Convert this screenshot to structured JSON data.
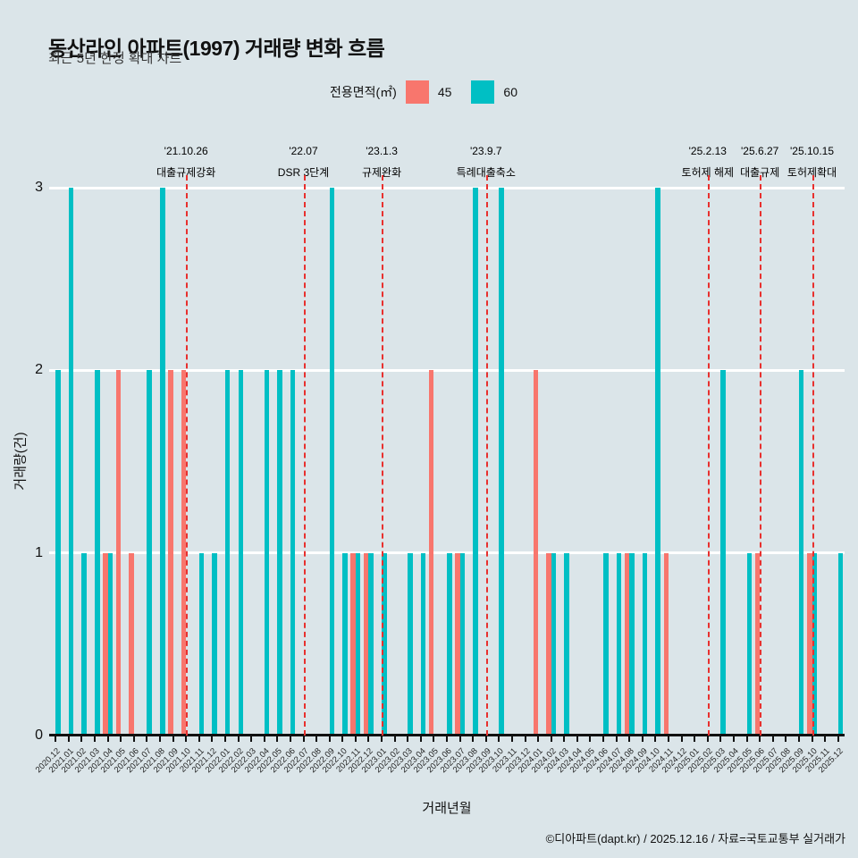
{
  "header": {
    "title": "동산라인 아파트(1997) 거래량 변화 흐름",
    "subtitle": "최근 5년 한정 확대 차트"
  },
  "legend": {
    "title": "전용면적(㎡)"
  },
  "footer": {
    "credit": "©디아파트(dapt.kr) / 2025.12.16 / 자료=국토교통부 실거래가"
  },
  "colors": {
    "background": "#dbe5e9",
    "grid": "#ffffff",
    "event_line": "#e8302e",
    "series_45": "#F8766D",
    "series_60": "#00BFC4"
  },
  "chart_data": {
    "type": "bar",
    "title": "동산라인 아파트(1997) 거래량 변화 흐름",
    "xlabel": "거래년월",
    "ylabel": "거래량(건)",
    "ylim": [
      0,
      3
    ],
    "yticks": [
      0,
      1,
      2,
      3
    ],
    "grid": "horizontal-white",
    "legend_position": "top-center",
    "categories": [
      "2020.12",
      "2021.01",
      "2021.02",
      "2021.03",
      "2021.04",
      "2021.05",
      "2021.06",
      "2021.07",
      "2021.08",
      "2021.09",
      "2021.10",
      "2021.11",
      "2021.12",
      "2022.01",
      "2022.02",
      "2022.03",
      "2022.04",
      "2022.05",
      "2022.06",
      "2022.07",
      "2022.08",
      "2022.09",
      "2022.10",
      "2022.11",
      "2022.12",
      "2023.01",
      "2023.02",
      "2023.03",
      "2023.04",
      "2023.05",
      "2023.06",
      "2023.07",
      "2023.08",
      "2023.09",
      "2023.10",
      "2023.11",
      "2023.12",
      "2024.01",
      "2024.02",
      "2024.03",
      "2024.04",
      "2024.05",
      "2024.06",
      "2024.07",
      "2024.08",
      "2024.09",
      "2024.10",
      "2024.11",
      "2024.12",
      "2025.01",
      "2025.02",
      "2025.03",
      "2025.04",
      "2025.05",
      "2025.06",
      "2025.07",
      "2025.08",
      "2025.09",
      "2025.10",
      "2025.11",
      "2025.12"
    ],
    "series": [
      {
        "name": "45",
        "color": "#F8766D",
        "values": [
          0,
          0,
          0,
          0,
          1,
          2,
          1,
          0,
          0,
          2,
          2,
          0,
          0,
          0,
          0,
          0,
          0,
          0,
          0,
          0,
          0,
          0,
          0,
          1,
          1,
          0,
          0,
          0,
          0,
          2,
          0,
          1,
          0,
          0,
          0,
          0,
          0,
          2,
          1,
          0,
          0,
          0,
          0,
          0,
          1,
          0,
          0,
          1,
          0,
          0,
          0,
          0,
          0,
          0,
          1,
          0,
          0,
          0,
          1,
          0,
          0
        ]
      },
      {
        "name": "60",
        "color": "#00BFC4",
        "values": [
          2,
          3,
          1,
          2,
          1,
          0,
          0,
          2,
          3,
          0,
          0,
          1,
          1,
          2,
          2,
          0,
          2,
          2,
          2,
          0,
          0,
          3,
          1,
          1,
          1,
          1,
          0,
          1,
          1,
          0,
          1,
          1,
          3,
          0,
          3,
          0,
          0,
          0,
          1,
          1,
          0,
          0,
          1,
          1,
          1,
          1,
          3,
          0,
          0,
          0,
          0,
          2,
          0,
          1,
          0,
          0,
          0,
          2,
          1,
          0,
          1
        ]
      }
    ],
    "annotations": [
      {
        "date": "'21.10.26",
        "label": "대출규제강화",
        "month": "2021.10"
      },
      {
        "date": "'22.07",
        "label": "DSR 3단계",
        "month": "2022.07"
      },
      {
        "date": "'23.1.3",
        "label": "규제완화",
        "month": "2023.01"
      },
      {
        "date": "'23.9.7",
        "label": "특례대출축소",
        "month": "2023.09"
      },
      {
        "date": "'25.2.13",
        "label": "토허제 해제",
        "month": "2025.02"
      },
      {
        "date": "'25.6.27",
        "label": "대출규제",
        "month": "2025.06"
      },
      {
        "date": "'25.10.15",
        "label": "토허제확대",
        "month": "2025.10"
      }
    ]
  }
}
